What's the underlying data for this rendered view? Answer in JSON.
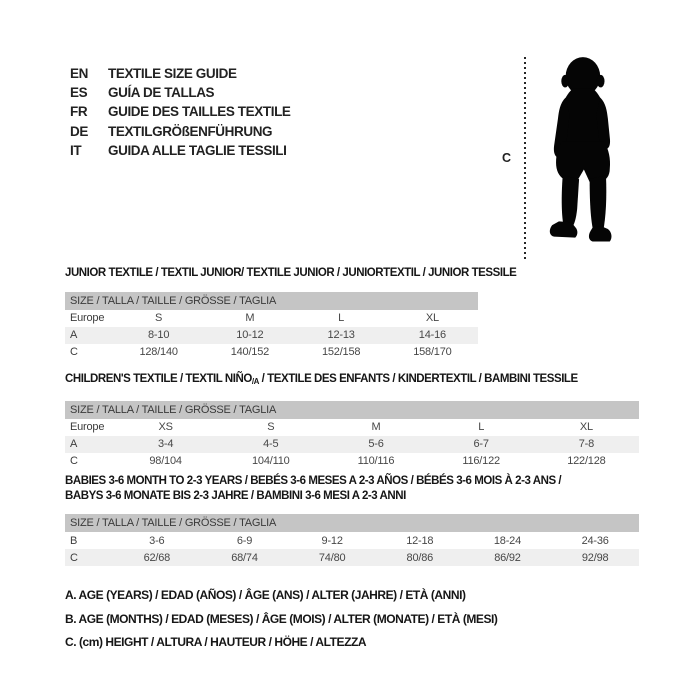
{
  "colors": {
    "band": "#c5c5c5",
    "stripe": "#efefef",
    "silhouette": "#050505"
  },
  "language_guide": {
    "items": [
      {
        "code": "EN",
        "label": "TEXTILE SIZE GUIDE"
      },
      {
        "code": "ES",
        "label": "GUÍA DE TALLAS"
      },
      {
        "code": "FR",
        "label": "GUIDE DES TAILLES TEXTILE"
      },
      {
        "code": "DE",
        "label": "TEXTILGRÖßENFÜHRUNG"
      },
      {
        "code": "IT",
        "label": "GUIDA ALLE TAGLIE TESSILI"
      }
    ]
  },
  "figure": {
    "height_label": "C",
    "icon": "toddler-silhouette"
  },
  "tables": [
    {
      "kind": "junior",
      "title_lines": [
        [
          {
            "text": "JUNIOR TEXTILE / TEXTIL JUNIOR/ TEXTILE JUNIOR / JUNIORTEXTIL / JUNIOR TESSILE"
          }
        ]
      ],
      "size_header": "SIZE / TALLA / TAILLE / GRÖSSE / TAGLIA",
      "rows": [
        {
          "label": "Europe",
          "cells": [
            "S",
            "M",
            "L",
            "XL"
          ]
        },
        {
          "label": "A",
          "cells": [
            "8-10",
            "10-12",
            "12-13",
            "14-16"
          ]
        },
        {
          "label": "C",
          "cells": [
            "128/140",
            "140/152",
            "152/158",
            "158/170"
          ]
        }
      ]
    },
    {
      "kind": "children",
      "title_lines": [
        [
          {
            "text": "CHILDREN'S TEXTILE / TEXTIL NIÑO"
          },
          {
            "text": "/A",
            "sub": true
          },
          {
            "text": " / TEXTILE DES ENFANTS / KINDERTEXTIL / BAMBINI TESSILE"
          }
        ]
      ],
      "size_header": "SIZE / TALLA / TAILLE / GRÖSSE / TAGLIA",
      "rows": [
        {
          "label": "Europe",
          "cells": [
            "XS",
            "S",
            "M",
            "L",
            "XL"
          ]
        },
        {
          "label": "A",
          "cells": [
            "3-4",
            "4-5",
            "5-6",
            "6-7",
            "7-8"
          ]
        },
        {
          "label": "C",
          "cells": [
            "98/104",
            "104/110",
            "110/116",
            "116/122",
            "122/128"
          ]
        }
      ]
    },
    {
      "kind": "babies",
      "title_lines": [
        [
          {
            "text": "BABIES 3-6 MONTH TO 2-3 YEARS / BEBÉS 3-6 MESES A 2-3 AÑOS / BÉBÉS 3-6 MOIS À 2-3 ANS /"
          }
        ],
        [
          {
            "text": "BABYS 3-6 MONATE BIS 2-3 JAHRE / BAMBINI 3-6 MESI A 2-3 ANNI"
          }
        ]
      ],
      "size_header": "SIZE / TALLA / TAILLE / GRÖSSE / TAGLIA",
      "rows": [
        {
          "label": "B",
          "cells": [
            "3-6",
            "6-9",
            "9-12",
            "12-18",
            "18-24",
            "24-36"
          ]
        },
        {
          "label": "C",
          "cells": [
            "62/68",
            "68/74",
            "74/80",
            "80/86",
            "86/92",
            "92/98"
          ]
        }
      ]
    }
  ],
  "notes": [
    "A. AGE (YEARS) / EDAD (AÑOS) / ÂGE (ANS) / ALTER (JAHRE) / ETÀ (ANNI)",
    "B. AGE (MONTHS) / EDAD (MESES) / ÂGE (MOIS) / ALTER (MONATE) / ETÀ (MESI)",
    "C. (cm) HEIGHT / ALTURA / HAUTEUR / HÖHE / ALTEZZA"
  ]
}
